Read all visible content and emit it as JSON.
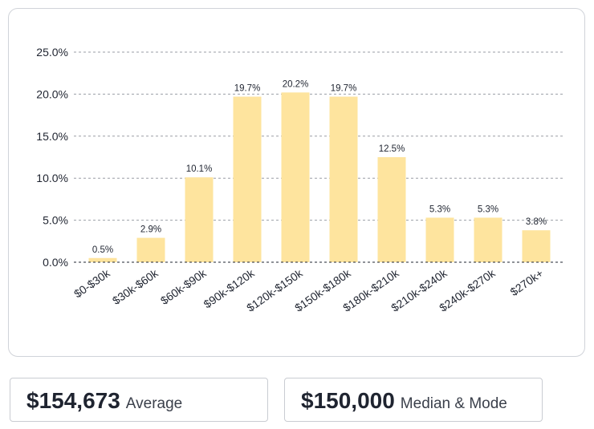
{
  "chart_data": {
    "type": "bar",
    "categories": [
      "$0-$30k",
      "$30k-$60k",
      "$60k-$90k",
      "$90k-$120k",
      "$120k-$150k",
      "$150k-$180k",
      "$180k-$210k",
      "$210k-$240k",
      "$240k-$270k",
      "$270k+"
    ],
    "values": [
      0.5,
      2.9,
      10.1,
      19.7,
      20.2,
      19.7,
      12.5,
      5.3,
      5.3,
      3.8
    ],
    "data_labels": [
      "0.5%",
      "2.9%",
      "10.1%",
      "19.7%",
      "20.2%",
      "19.7%",
      "12.5%",
      "5.3%",
      "5.3%",
      "3.8%"
    ],
    "yticks": [
      0,
      5,
      10,
      15,
      20,
      25
    ],
    "ytick_labels": [
      "0.0%",
      "5.0%",
      "10.0%",
      "15.0%",
      "20.0%",
      "25.0%"
    ],
    "ylim": [
      0,
      25
    ],
    "title": "",
    "xlabel": "",
    "ylabel": "",
    "grid": "horizontal dashed",
    "bar_color": "#fee49e"
  },
  "stats": {
    "average": {
      "value": "$154,673",
      "label": "Average"
    },
    "median": {
      "value": "$150,000",
      "label": "Median & Mode"
    }
  }
}
